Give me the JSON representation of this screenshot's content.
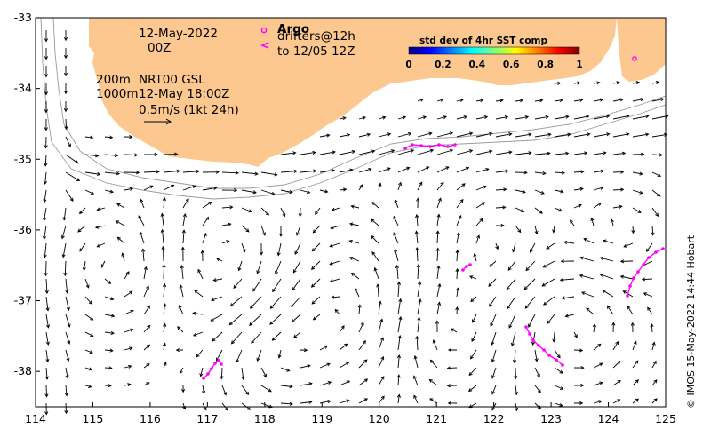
{
  "map": {
    "lon_range": [
      114,
      125
    ],
    "lat_range": [
      -38.5,
      -33
    ],
    "lon_ticks": [
      "114",
      "115",
      "116",
      "117",
      "118",
      "119",
      "120",
      "121",
      "122",
      "123",
      "124",
      "125"
    ],
    "lat_ticks": [
      "-33",
      "-34",
      "-35",
      "-36",
      "-37",
      "-38"
    ],
    "colors": {
      "land": "#fcc890",
      "ocean": "#ffffff",
      "isobath": "#9a9a9a",
      "arrow": "#000000",
      "argo": "#ff00ff",
      "drifter": "#ff00ff"
    }
  },
  "annotations": {
    "date_line1": "12-May-2022",
    "date_line2": "00Z",
    "depth_200": "200m",
    "depth_1000": "1000m",
    "product": "NRT00 GSL",
    "product_time": "12-May 18:00Z",
    "scale_label": "0.5m/s (1kt 24h)"
  },
  "legend": {
    "argo_label": "Argo",
    "drifters_label": "drifters@12h",
    "drifters_to": "to 12/05 12Z"
  },
  "colorbar": {
    "title": "std dev of 4hr SST comp",
    "ticks": [
      "0",
      "0.2",
      "0.4",
      "0.6",
      "0.8",
      "1"
    ],
    "colors": [
      "#00007f",
      "#0000ff",
      "#007fff",
      "#00ffff",
      "#7fff7f",
      "#ffff00",
      "#ff7f00",
      "#ff0000",
      "#7f0000"
    ]
  },
  "credit": "© IMOS 15-May-2022 14:44 Hobart"
}
